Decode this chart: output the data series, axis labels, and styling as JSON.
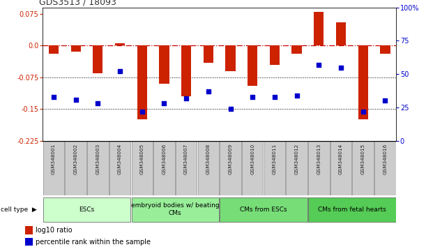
{
  "title": "GDS3513 / 18093",
  "samples": [
    "GSM348001",
    "GSM348002",
    "GSM348003",
    "GSM348004",
    "GSM348005",
    "GSM348006",
    "GSM348007",
    "GSM348008",
    "GSM348009",
    "GSM348010",
    "GSM348011",
    "GSM348012",
    "GSM348013",
    "GSM348014",
    "GSM348015",
    "GSM348016"
  ],
  "log10_ratio": [
    -0.02,
    -0.015,
    -0.065,
    0.005,
    -0.175,
    -0.09,
    -0.12,
    -0.04,
    -0.06,
    -0.095,
    -0.045,
    -0.02,
    0.079,
    0.055,
    -0.175,
    -0.02
  ],
  "percentile_rank": [
    33,
    31,
    28,
    52,
    22,
    28,
    32,
    37,
    24,
    33,
    33,
    34,
    57,
    55,
    22,
    30
  ],
  "cell_types": [
    {
      "label": "ESCs",
      "start": 0,
      "end": 4,
      "color": "#ccffcc"
    },
    {
      "label": "embryoid bodies w/ beating\nCMs",
      "start": 4,
      "end": 8,
      "color": "#99ee99"
    },
    {
      "label": "CMs from ESCs",
      "start": 8,
      "end": 12,
      "color": "#77dd77"
    },
    {
      "label": "CMs from fetal hearts",
      "start": 12,
      "end": 16,
      "color": "#55cc55"
    }
  ],
  "ylim_left": [
    -0.225,
    0.09
  ],
  "ylim_right": [
    0,
    100
  ],
  "bar_color": "#cc2200",
  "dot_color": "#0000cc",
  "hline_color": "#cc0000",
  "dotted_line_color": "#000000",
  "yticks_left": [
    0.075,
    0.0,
    -0.075,
    -0.15,
    -0.225
  ],
  "yticks_right": [
    100,
    75,
    50,
    25,
    0
  ],
  "bg_color": "#ffffff",
  "sample_box_color": "#cccccc",
  "sample_box_edge": "#888888"
}
